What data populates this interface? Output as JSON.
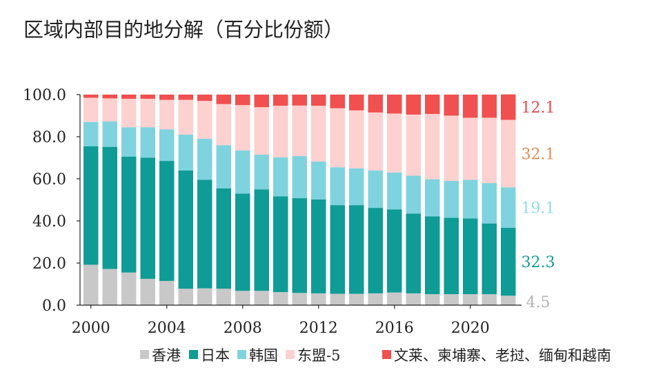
{
  "chart_data": {
    "type": "bar",
    "stacked": true,
    "title": "区域内部目的地分解（百分比份额）",
    "xlabel": "",
    "ylabel": "",
    "ylim": [
      0,
      100
    ],
    "y_ticks": [
      "0.0",
      "20.0",
      "40.0",
      "60.0",
      "80.0",
      "100.0"
    ],
    "x_tick_labels": [
      "2000",
      "2004",
      "2008",
      "2012",
      "2016",
      "2020"
    ],
    "categories": [
      2000,
      2001,
      2002,
      2003,
      2004,
      2005,
      2006,
      2007,
      2008,
      2009,
      2010,
      2011,
      2012,
      2013,
      2014,
      2015,
      2016,
      2017,
      2018,
      2019,
      2020,
      2021,
      2022
    ],
    "series": [
      {
        "name": "香港",
        "color": "#c8c8c8",
        "values": [
          19.2,
          17.2,
          15.5,
          12.5,
          11.5,
          7.8,
          8.0,
          7.8,
          6.8,
          6.8,
          6.2,
          5.8,
          5.6,
          5.4,
          5.4,
          5.6,
          6.0,
          5.6,
          5.2,
          5.2,
          5.2,
          5.2,
          4.5
        ]
      },
      {
        "name": "日本",
        "color": "#0f9b96",
        "values": [
          56.3,
          58.0,
          55.0,
          57.5,
          57.0,
          56.2,
          51.5,
          47.7,
          46.2,
          48.2,
          45.5,
          45.0,
          44.6,
          42.1,
          42.1,
          40.6,
          39.5,
          37.9,
          37.0,
          36.3,
          36.0,
          33.6,
          32.3
        ]
      },
      {
        "name": "韩国",
        "color": "#7fd3df",
        "values": [
          11.5,
          12.0,
          14.0,
          14.5,
          15.0,
          17.0,
          19.5,
          20.5,
          20.5,
          16.5,
          18.5,
          20.0,
          18.0,
          18.0,
          17.5,
          17.8,
          17.5,
          18.0,
          17.6,
          17.5,
          18.3,
          19.2,
          19.1
        ]
      },
      {
        "name": "东盟-5",
        "color": "#fdd1d0",
        "values": [
          11.5,
          11.0,
          13.5,
          13.5,
          14.0,
          16.5,
          18.0,
          19.5,
          21.5,
          22.5,
          24.5,
          24.0,
          26.5,
          28.0,
          27.5,
          27.5,
          28.0,
          29.0,
          31.0,
          31.0,
          29.5,
          31.0,
          32.1
        ]
      },
      {
        "name": "文莱、柬埔寨、老挝、缅甸和越南",
        "color": "#f0504f",
        "values": [
          1.5,
          1.8,
          2.0,
          2.0,
          2.5,
          2.5,
          3.0,
          4.5,
          5.0,
          6.0,
          5.3,
          5.2,
          5.3,
          6.5,
          7.5,
          8.5,
          9.0,
          9.5,
          9.2,
          10.0,
          11.0,
          11.0,
          12.1
        ]
      }
    ],
    "end_labels": [
      {
        "text": "12.1",
        "color": "#e8474a"
      },
      {
        "text": "32.1",
        "color": "#e18c55"
      },
      {
        "text": "19.1",
        "color": "#8fdbe6"
      },
      {
        "text": "32.3",
        "color": "#0f9b96"
      },
      {
        "text": "4.5",
        "color": "#b4b4b4"
      }
    ],
    "legend_position": "bottom",
    "grid": false
  }
}
